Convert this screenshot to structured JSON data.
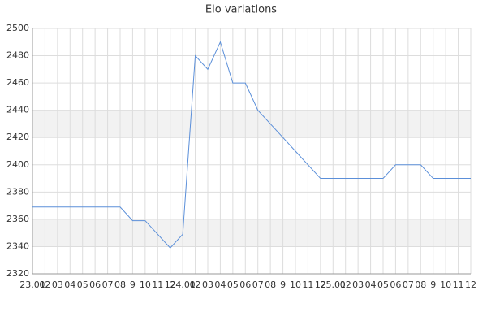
{
  "chart_data": {
    "type": "line",
    "title": "Elo variations",
    "categories": [
      "23.01",
      "02",
      "03",
      "04",
      "05",
      "06",
      "07",
      "08",
      "9",
      "10",
      "11",
      "12",
      "24.01",
      "02",
      "03",
      "04",
      "05",
      "06",
      "07",
      "08",
      "9",
      "10",
      "11",
      "12",
      "25.01",
      "02",
      "03",
      "04",
      "05",
      "06",
      "07",
      "08",
      "9",
      "10",
      "11",
      "12"
    ],
    "series": [
      {
        "color": "#5b8fd9",
        "values": [
          2369,
          2369,
          2369,
          2369,
          2369,
          2369,
          2369,
          2369,
          2359,
          2359,
          2349,
          2339,
          2349,
          2480,
          2470,
          2490,
          2460,
          2460,
          2440,
          2430,
          2420,
          2410,
          2400,
          2390,
          2390,
          2390,
          2390,
          2390,
          2390,
          2400,
          2400,
          2400,
          2390,
          2390,
          2390,
          2390
        ]
      }
    ],
    "ylim": [
      2320,
      2500
    ],
    "yticks": [
      2320,
      2340,
      2360,
      2380,
      2400,
      2420,
      2440,
      2460,
      2480,
      2500
    ],
    "grid": true
  }
}
